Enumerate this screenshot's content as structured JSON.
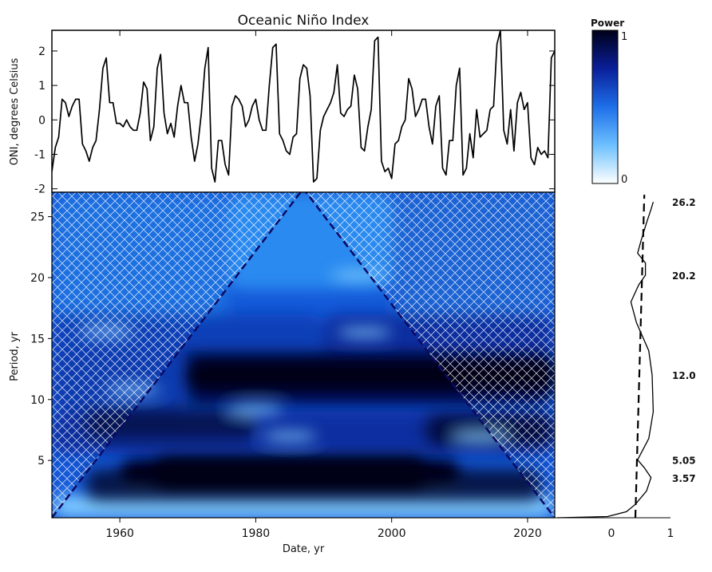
{
  "chart_data": [
    {
      "type": "line",
      "title": "Oceanic Niño Index",
      "xlabel": "",
      "ylabel": "ONI, degrees Celsius",
      "xlim": [
        1950,
        2024
      ],
      "ylim": [
        -2.1,
        2.6
      ],
      "y_ticks": [
        2,
        1,
        0,
        -1,
        -2
      ],
      "grid": false,
      "series": [
        {
          "x": [
            1950.0,
            1950.5,
            1951.0,
            1951.5,
            1952.0,
            1952.5,
            1953.0,
            1953.5,
            1954.0,
            1954.5,
            1955.0,
            1955.5,
            1956.0,
            1956.5,
            1957.0,
            1957.5,
            1958.0,
            1958.5,
            1959.0,
            1959.5,
            1960.0,
            1960.5,
            1961.0,
            1961.5,
            1962.0,
            1962.5,
            1963.0,
            1963.5,
            1964.0,
            1964.5,
            1965.0,
            1965.5,
            1966.0,
            1966.5,
            1967.0,
            1967.5,
            1968.0,
            1968.5,
            1969.0,
            1969.5,
            1970.0,
            1970.5,
            1971.0,
            1971.5,
            1972.0,
            1972.5,
            1973.0,
            1973.5,
            1974.0,
            1974.5,
            1975.0,
            1975.5,
            1976.0,
            1976.5,
            1977.0,
            1977.5,
            1978.0,
            1978.5,
            1979.0,
            1979.5,
            1980.0,
            1980.5,
            1981.0,
            1981.5,
            1982.0,
            1982.5,
            1983.0,
            1983.5,
            1984.0,
            1984.5,
            1985.0,
            1985.5,
            1986.0,
            1986.5,
            1987.0,
            1987.5,
            1988.0,
            1988.5,
            1989.0,
            1989.5,
            1990.0,
            1990.5,
            1991.0,
            1991.5,
            1992.0,
            1992.5,
            1993.0,
            1993.5,
            1994.0,
            1994.5,
            1995.0,
            1995.5,
            1996.0,
            1996.5,
            1997.0,
            1997.5,
            1998.0,
            1998.5,
            1999.0,
            1999.5,
            2000.0,
            2000.5,
            2001.0,
            2001.5,
            2002.0,
            2002.5,
            2003.0,
            2003.5,
            2004.0,
            2004.5,
            2005.0,
            2005.5,
            2006.0,
            2006.5,
            2007.0,
            2007.5,
            2008.0,
            2008.5,
            2009.0,
            2009.5,
            2010.0,
            2010.5,
            2011.0,
            2011.5,
            2012.0,
            2012.5,
            2013.0,
            2013.5,
            2014.0,
            2014.5,
            2015.0,
            2015.5,
            2016.0,
            2016.5,
            2017.0,
            2017.5,
            2018.0,
            2018.5,
            2019.0,
            2019.5,
            2020.0,
            2020.5,
            2021.0,
            2021.5,
            2022.0,
            2022.5,
            2023.0,
            2023.5,
            2024.0
          ],
          "y": [
            -1.5,
            -0.8,
            -0.5,
            0.6,
            0.5,
            0.1,
            0.4,
            0.6,
            0.6,
            -0.7,
            -0.9,
            -1.2,
            -0.8,
            -0.6,
            0.3,
            1.5,
            1.8,
            0.5,
            0.5,
            -0.1,
            -0.1,
            -0.2,
            0.0,
            -0.2,
            -0.3,
            -0.3,
            0.2,
            1.1,
            0.9,
            -0.6,
            -0.2,
            1.5,
            1.9,
            0.2,
            -0.4,
            -0.1,
            -0.5,
            0.4,
            1.0,
            0.5,
            0.5,
            -0.5,
            -1.2,
            -0.7,
            0.2,
            1.5,
            2.1,
            -1.4,
            -1.8,
            -0.6,
            -0.6,
            -1.3,
            -1.6,
            0.4,
            0.7,
            0.6,
            0.4,
            -0.2,
            0.0,
            0.4,
            0.6,
            0.0,
            -0.3,
            -0.3,
            1.0,
            2.1,
            2.2,
            -0.4,
            -0.6,
            -0.9,
            -1.0,
            -0.5,
            -0.4,
            1.2,
            1.6,
            1.5,
            0.7,
            -1.8,
            -1.7,
            -0.3,
            0.1,
            0.3,
            0.5,
            0.8,
            1.6,
            0.2,
            0.1,
            0.3,
            0.4,
            1.3,
            0.9,
            -0.8,
            -0.9,
            -0.2,
            0.3,
            2.3,
            2.4,
            -1.2,
            -1.5,
            -1.4,
            -1.7,
            -0.7,
            -0.6,
            -0.2,
            0.0,
            1.2,
            0.9,
            0.1,
            0.3,
            0.6,
            0.6,
            -0.2,
            -0.7,
            0.4,
            0.7,
            -1.4,
            -1.6,
            -0.6,
            -0.6,
            1.0,
            1.5,
            -1.6,
            -1.4,
            -0.4,
            -1.1,
            0.3,
            -0.5,
            -0.4,
            -0.3,
            0.3,
            0.4,
            2.2,
            2.6,
            -0.3,
            -0.7,
            0.3,
            -0.9,
            0.5,
            0.8,
            0.3,
            0.5,
            -1.1,
            -1.3,
            -0.8,
            -1.0,
            -0.9,
            -1.1,
            1.8,
            2.0
          ]
        }
      ]
    },
    {
      "type": "heatmap",
      "title": "",
      "xlabel": "Date, yr",
      "ylabel": "Period, yr",
      "xlim": [
        1950,
        2024
      ],
      "ylim": [
        0.3,
        27
      ],
      "x_ticks": [
        1960,
        1980,
        2000,
        2020
      ],
      "y_ticks": [
        5,
        10,
        15,
        20,
        25
      ],
      "cone_of_influence": "dashed triangle, apex at about 1987 / 27 yr",
      "colorbar": {
        "title": "Power",
        "min_label": "0",
        "max_label": "1",
        "colors": [
          "#ffffff",
          "#1e90ff",
          "#0a2aa8",
          "#000018"
        ]
      },
      "power_maxima": [
        {
          "period": 12.0,
          "x_range": [
            1970,
            2024
          ],
          "strength": 1.0
        },
        {
          "period": 4.0,
          "x_range": [
            1965,
            2005
          ],
          "strength": 1.0
        },
        {
          "period": 3.0,
          "x_range": [
            1955,
            2022
          ],
          "strength": 0.75
        },
        {
          "period": 8.0,
          "x_range": [
            1955,
            1980
          ],
          "strength": 0.55
        },
        {
          "period": 7.5,
          "x_range": [
            2005,
            2024
          ],
          "strength": 0.7
        }
      ]
    },
    {
      "type": "line",
      "title": "",
      "xlabel": "",
      "ylabel": "",
      "xlim": [
        0,
        1
      ],
      "ylim": [
        0.3,
        27
      ],
      "x_tick_labels": [
        "0",
        "1"
      ],
      "period_labels": [
        "26.2",
        "20.2",
        "12.0",
        "5.05",
        "3.57"
      ],
      "period_label_values": [
        26.2,
        20.2,
        12.0,
        5.05,
        3.57
      ],
      "series": [
        {
          "style": "solid",
          "x": [
            0.0,
            0.45,
            0.62,
            0.7,
            0.8,
            0.84,
            0.78,
            0.72,
            0.82,
            0.86,
            0.85,
            0.82,
            0.71,
            0.66,
            0.73,
            0.79,
            0.79,
            0.72,
            0.75,
            0.8,
            0.84,
            0.86
          ],
          "y": [
            0.3,
            0.4,
            0.8,
            1.4,
            2.5,
            3.6,
            4.4,
            5.05,
            6.8,
            9.0,
            12.0,
            14.0,
            16.3,
            18.0,
            19.4,
            20.2,
            21.2,
            22.0,
            23.0,
            24.5,
            25.6,
            26.2
          ]
        },
        {
          "style": "dashed",
          "x": [
            0.7,
            0.78
          ],
          "y": [
            0.3,
            26.8
          ]
        }
      ]
    }
  ]
}
